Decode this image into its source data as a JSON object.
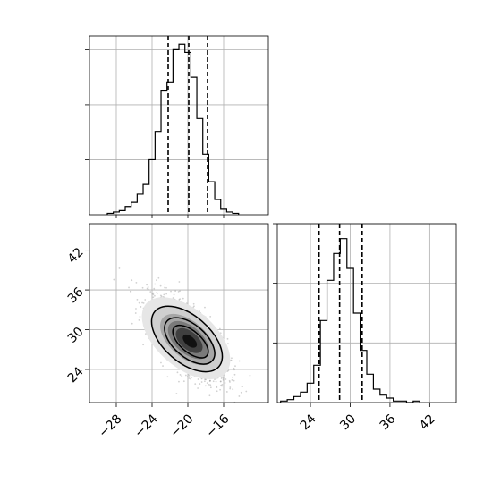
{
  "chart_data": [
    {
      "type": "histogram",
      "panel": "x-marginal",
      "xlim": [
        -31,
        -11
      ],
      "bins": {
        "edges_start": -29.0,
        "bin_width": 0.667,
        "counts": [
          1,
          2,
          3,
          6,
          9,
          15,
          22,
          40,
          60,
          90,
          96,
          120,
          124,
          118,
          100,
          70,
          44,
          24,
          11,
          4,
          2,
          1
        ]
      },
      "quantile_lines": [
        -22.2,
        -19.9,
        -17.8
      ],
      "yticks_unlabeled": [
        40,
        80,
        120
      ],
      "ylim": [
        0,
        130
      ],
      "grid": true
    },
    {
      "type": "scatter",
      "panel": "joint-density",
      "xlim": [
        -31,
        -11
      ],
      "ylim": [
        19,
        46
      ],
      "xticks": [
        -28,
        -24,
        -20,
        -16
      ],
      "yticks": [
        24,
        30,
        36,
        42
      ],
      "xtick_labels": [
        "−28",
        "−24",
        "−20",
        "−16"
      ],
      "ytick_labels": [
        "24",
        "30",
        "36",
        "42"
      ],
      "center": [
        -20.0,
        28.5
      ],
      "std": [
        2.2,
        3.3
      ],
      "correlation": -0.7,
      "contours": [
        {
          "level": "outer",
          "cx": -20.1,
          "cy": 28.6,
          "rx": 4.5,
          "ry": 2.0,
          "angle_deg": 41
        },
        {
          "level": "middle",
          "cx": -19.8,
          "cy": 28.3,
          "rx": 3.2,
          "ry": 1.4,
          "angle_deg": 41
        },
        {
          "level": "inner",
          "cx": -19.7,
          "cy": 28.2,
          "rx": 2.3,
          "ry": 0.9,
          "angle_deg": 41
        }
      ],
      "grid": true
    },
    {
      "type": "histogram",
      "panel": "y-marginal",
      "xlim": [
        19,
        46
      ],
      "xticks": [
        24,
        30,
        36,
        42
      ],
      "xtick_labels": [
        "24",
        "30",
        "36",
        "42"
      ],
      "bins": {
        "edges_start": 19.5,
        "bin_width": 1.0,
        "counts": [
          1,
          2,
          4,
          7,
          13,
          25,
          55,
          82,
          100,
          110,
          90,
          60,
          35,
          19,
          9,
          5,
          3,
          1,
          1,
          0,
          1
        ]
      },
      "quantile_lines": [
        25.3,
        28.4,
        31.8
      ],
      "yticks_unlabeled": [
        40,
        80,
        120
      ],
      "ylim": [
        0,
        120
      ],
      "grid": true
    }
  ]
}
